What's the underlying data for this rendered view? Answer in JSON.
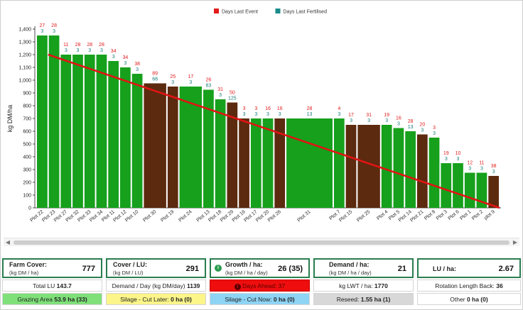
{
  "legend": [
    {
      "label": "Days Last Event",
      "color": "#e21b1b"
    },
    {
      "label": "Days Last Fertilised",
      "color": "#1a8a8a"
    }
  ],
  "chart_data": {
    "type": "bar",
    "ylabel": "kg DM/ha",
    "ylim": [
      0,
      1400
    ],
    "yticks": [
      0,
      100,
      200,
      300,
      400,
      500,
      600,
      700,
      800,
      900,
      1000,
      1100,
      1200,
      1300,
      1400
    ],
    "ytick_labels": [
      "0",
      "100",
      "200",
      "300",
      "400",
      "500",
      "600",
      "700",
      "800",
      "900",
      "1,000",
      "1,100",
      "1,200",
      "1,300",
      "1,400"
    ],
    "colors": {
      "green": "#16a01c",
      "brown": "#5c2a0e",
      "trend": "#e01414"
    },
    "trend_line": {
      "start": 1200,
      "end": 0
    },
    "bars": [
      {
        "name": "Plot 22",
        "value": 1350,
        "color": "green",
        "event": "27",
        "fert": "3"
      },
      {
        "name": "Plot 23",
        "value": 1350,
        "color": "green",
        "event": "28",
        "fert": "3"
      },
      {
        "name": "Plot 27",
        "value": 1200,
        "color": "green",
        "event": "11",
        "fert": "3"
      },
      {
        "name": "Plot 32",
        "value": 1200,
        "color": "green",
        "event": "28",
        "fert": "3"
      },
      {
        "name": "Plot 33",
        "value": 1200,
        "color": "green",
        "event": "28",
        "fert": "3"
      },
      {
        "name": "Plot 34",
        "value": 1200,
        "color": "green",
        "event": "28",
        "fert": "3"
      },
      {
        "name": "Plot 11",
        "value": 1150,
        "color": "green",
        "event": "34",
        "fert": "3"
      },
      {
        "name": "Plot 12",
        "value": 1100,
        "color": "green",
        "event": "34",
        "fert": "3"
      },
      {
        "name": "Plot 10",
        "value": 1050,
        "color": "green",
        "event": "38",
        "fert": "3"
      },
      {
        "name": "Plot 30",
        "value": 975,
        "color": "brown",
        "event": "89",
        "fert": "68",
        "width": 2
      },
      {
        "name": "Plot 19",
        "value": 950,
        "color": "brown",
        "event": "25",
        "fert": "3"
      },
      {
        "name": "Plot 24",
        "value": 950,
        "color": "green",
        "event": "17",
        "fert": "3",
        "width": 2
      },
      {
        "name": "Plot 13",
        "value": 925,
        "color": "green",
        "event": "26",
        "fert": "83"
      },
      {
        "name": "Plot 18",
        "value": 850,
        "color": "green",
        "event": "31",
        "fert": "3"
      },
      {
        "name": "Plot 29",
        "value": 825,
        "color": "brown",
        "event": "50",
        "fert": "125"
      },
      {
        "name": "Plot 16",
        "value": 700,
        "color": "brown",
        "event": "3",
        "fert": "3"
      },
      {
        "name": "Plot 17",
        "value": 700,
        "color": "green",
        "event": "3",
        "fert": "3"
      },
      {
        "name": "Plot 20",
        "value": 700,
        "color": "green",
        "event": "16",
        "fert": "3"
      },
      {
        "name": "Plot 26",
        "value": 700,
        "color": "brown",
        "event": "16",
        "fert": "3"
      },
      {
        "name": "Plot 31",
        "value": 700,
        "color": "green",
        "event": "28",
        "fert": "13",
        "width": 4
      },
      {
        "name": "Plot 7",
        "value": 700,
        "color": "green",
        "event": "4",
        "fert": "3"
      },
      {
        "name": "Plot 15",
        "value": 650,
        "color": "brown",
        "event": "17",
        "fert": "3"
      },
      {
        "name": "Plot 25",
        "value": 650,
        "color": "brown",
        "event": "31",
        "fert": "3",
        "width": 2
      },
      {
        "name": "Plot 4",
        "value": 650,
        "color": "green",
        "event": "19",
        "fert": "3"
      },
      {
        "name": "Plot 5",
        "value": 625,
        "color": "green",
        "event": "16",
        "fert": "3"
      },
      {
        "name": "Plot 14",
        "value": 600,
        "color": "green",
        "event": "28",
        "fert": "13"
      },
      {
        "name": "Plot 21",
        "value": 575,
        "color": "brown",
        "event": "20",
        "fert": "3"
      },
      {
        "name": "Plot 8",
        "value": 550,
        "color": "green",
        "event": "3",
        "fert": "3"
      },
      {
        "name": "Plot 3",
        "value": 350,
        "color": "green",
        "event": "19",
        "fert": "3"
      },
      {
        "name": "Plot 6",
        "value": 350,
        "color": "green",
        "event": "10",
        "fert": "3"
      },
      {
        "name": "Plot 1",
        "value": 275,
        "color": "green",
        "event": "12",
        "fert": "3"
      },
      {
        "name": "Plot 2",
        "value": 275,
        "color": "green",
        "event": "11",
        "fert": "3"
      },
      {
        "name": "plot 9",
        "value": 250,
        "color": "brown",
        "event": "38",
        "fert": "3"
      }
    ]
  },
  "stats": {
    "farm_cover": {
      "label": "Farm Cover:",
      "unit": "(kg DM / ha)",
      "value": "777"
    },
    "cover_lu": {
      "label": "Cover / LU:",
      "unit": "(kg DM / LU)",
      "value": "291"
    },
    "growth_ha": {
      "label": "Growth / ha:",
      "unit": "(kg DM / ha / day)",
      "value": "26 (35)",
      "icon": "i"
    },
    "demand_ha": {
      "label": "Demand / ha:",
      "unit": "(kg DM / ha / day)",
      "value": "21"
    },
    "lu_ha": {
      "label": "LU / ha:",
      "value": "2.67"
    },
    "total_lu": {
      "label": "Total LU",
      "value": "143.7"
    },
    "demand_day": {
      "label": "Demand / Day (kg DM/day)",
      "value": "1139"
    },
    "days_ahead": {
      "icon": "!",
      "label": "Days Ahead: 37"
    },
    "kg_lwt": {
      "label": "kg LWT / ha:",
      "value": "1770"
    },
    "rotation": {
      "label": "Rotation Length Back:",
      "value": "36"
    },
    "grazing": {
      "label": "Grazing Area",
      "value": "53.9 ha (33)"
    },
    "silage_later": {
      "label": "Silage - Cut Later:",
      "value": "0 ha (0)"
    },
    "silage_now": {
      "label": "Silage - Cut Now:",
      "value": "0 ha (0)"
    },
    "reseed": {
      "label": "Reseed:",
      "value": "1.55 ha (1)"
    },
    "other": {
      "label": "Other",
      "value": "0 ha (0)"
    }
  },
  "scroll": {
    "left_arrow": "◀",
    "right_arrow": "▶"
  }
}
